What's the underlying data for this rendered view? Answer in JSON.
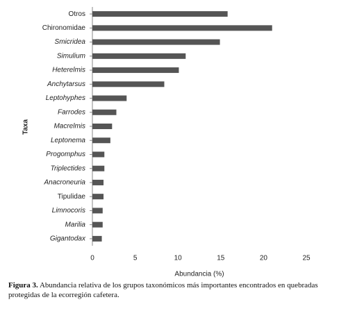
{
  "chart_data": {
    "type": "barh",
    "categories": [
      "Otros",
      "Chironomidae",
      "Smicridea",
      "Simulium",
      "Heterelmis",
      "Anchytarsus",
      "Leptohyphes",
      "Farrodes",
      "Macrelmis",
      "Leptonema",
      "Progomphus",
      "Triplectides",
      "Anacroneuria",
      "Tipulidae",
      "Limnocoris",
      "Marilia",
      "Gigantodax"
    ],
    "category_styles": [
      "normal",
      "normal",
      "italic",
      "italic",
      "italic",
      "italic",
      "italic",
      "italic",
      "italic",
      "italic",
      "italic",
      "italic",
      "italic",
      "normal",
      "italic",
      "italic",
      "italic"
    ],
    "values": [
      15.8,
      21.0,
      14.9,
      10.9,
      10.1,
      8.4,
      4.0,
      2.8,
      2.3,
      2.1,
      1.4,
      1.4,
      1.3,
      1.3,
      1.2,
      1.2,
      1.1
    ],
    "color": "#555555",
    "xlim": [
      0,
      25
    ],
    "xticks": [
      0,
      5,
      10,
      15,
      20,
      25
    ],
    "xlabel": "Abundancia (%)",
    "ylabel": "Taxa",
    "caption_label": "Figura 3.",
    "caption": "Abundancia relativa de los grupos taxonómicos más importantes encontrados en quebradas protegidas de la ecorregión cafetera."
  }
}
